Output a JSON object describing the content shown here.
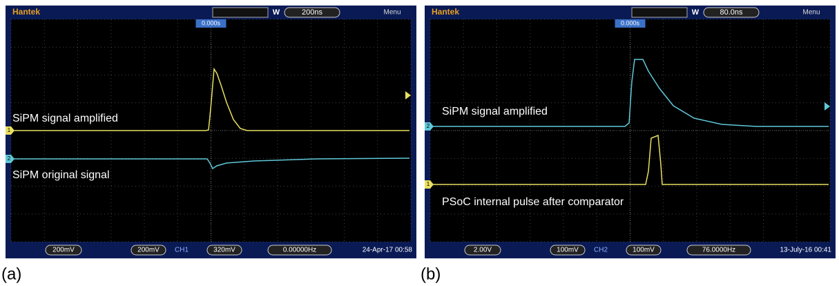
{
  "panels": [
    {
      "label": "(a)",
      "brand": "Hantek",
      "window_label": "W",
      "timebase": "200ns",
      "menu": "Menu",
      "trigger_position": "0.000s",
      "annotations": [
        "SiPM signal amplified",
        "SiPM original signal"
      ],
      "channel_markers": [
        "1",
        "2"
      ],
      "status": {
        "ch1_scale": "200mV",
        "ch2_scale": "200mV",
        "trigger_channel": "CH1",
        "trigger_level": "320mV",
        "frequency": "0.00000Hz",
        "datetime": "24-Apr-17 00:58"
      }
    },
    {
      "label": "(b)",
      "brand": "Hantek",
      "window_label": "W",
      "timebase": "80.0ns",
      "menu": "Menu",
      "trigger_position": "0.000s",
      "annotations": [
        "SiPM signal amplified",
        "PSoC internal pulse after comparator"
      ],
      "channel_markers": [
        "2",
        "1"
      ],
      "status": {
        "ch1_scale": "2.00V",
        "ch2_scale": "100mV",
        "trigger_channel": "CH2",
        "trigger_level": "100mV",
        "frequency": "76.0000Hz",
        "datetime": "13-July-16 00:41"
      }
    }
  ]
}
